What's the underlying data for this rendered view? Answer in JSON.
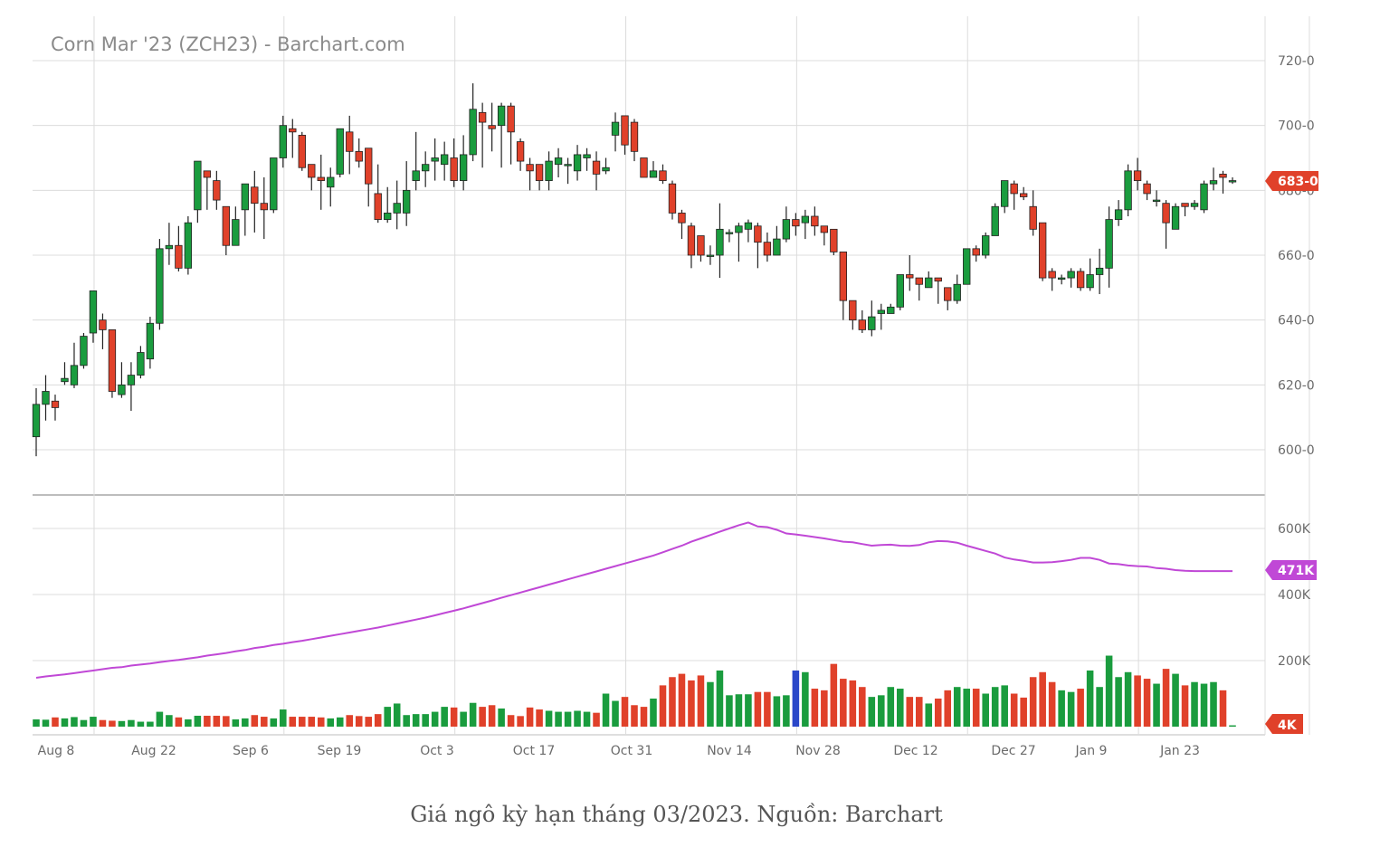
{
  "chart_data": {
    "type": "candlestick",
    "title": "Corn Mar '23 (ZCH23) - Barchart.com",
    "price_axis": {
      "ylim": [
        590,
        722
      ],
      "ticks": [
        "600-0",
        "620-0",
        "640-0",
        "660-0",
        "680-0",
        "700-0",
        "720-0"
      ],
      "values": [
        600,
        620,
        640,
        660,
        680,
        700,
        720
      ]
    },
    "volume_axis": {
      "ylim": [
        0,
        600000
      ],
      "ticks": [
        "200K",
        "400K",
        "600K"
      ],
      "values": [
        200000,
        400000,
        600000
      ]
    },
    "x_ticks": [
      "Aug 8",
      "Aug 22",
      "Sep 6",
      "Sep 19",
      "Oct 3",
      "Oct 17",
      "Oct 31",
      "Nov 14",
      "Nov 28",
      "Dec 12",
      "Dec 27",
      "Jan 9",
      "Jan 23"
    ],
    "last_price_label": "683-0",
    "last_open_interest_label": "471K",
    "last_volume_label": "4K",
    "colors": {
      "up": "#1a9c3e",
      "down": "#e0412a",
      "open_interest": "#c048d6",
      "highlight_volume": "#2a47c9",
      "grid": "#dcdcdc"
    },
    "candles": [
      [
        604,
        614,
        619,
        598
      ],
      [
        614,
        618,
        623,
        609
      ],
      [
        615,
        613,
        617,
        609
      ],
      [
        621,
        622,
        627,
        620
      ],
      [
        620,
        626,
        633,
        619
      ],
      [
        626,
        635,
        636,
        625
      ],
      [
        636,
        649,
        649,
        633
      ],
      [
        640,
        637,
        642,
        631
      ],
      [
        637,
        618,
        637,
        616
      ],
      [
        617,
        620,
        627,
        616
      ],
      [
        620,
        623,
        627,
        612
      ],
      [
        623,
        630,
        632,
        622
      ],
      [
        628,
        639,
        641,
        625
      ],
      [
        639,
        662,
        665,
        637
      ],
      [
        662,
        663,
        670,
        657
      ],
      [
        663,
        656,
        669,
        655
      ],
      [
        656,
        670,
        672,
        654
      ],
      [
        674,
        689,
        689,
        670
      ],
      [
        686,
        684,
        686,
        674
      ],
      [
        683,
        677,
        686,
        674
      ],
      [
        675,
        663,
        675,
        660
      ],
      [
        663,
        671,
        675,
        663
      ],
      [
        674,
        682,
        682,
        666
      ],
      [
        681,
        676,
        686,
        667
      ],
      [
        676,
        674,
        684,
        665
      ],
      [
        674,
        690,
        690,
        673
      ],
      [
        690,
        700,
        703,
        687
      ],
      [
        699,
        698,
        702,
        690
      ],
      [
        697,
        687,
        698,
        686
      ],
      [
        688,
        684,
        688,
        680
      ],
      [
        684,
        683,
        691,
        674
      ],
      [
        681,
        684,
        687,
        675
      ],
      [
        685,
        699,
        699,
        684
      ],
      [
        698,
        692,
        703,
        685
      ],
      [
        692,
        689,
        696,
        687
      ],
      [
        693,
        682,
        693,
        675
      ],
      [
        679,
        671,
        688,
        670
      ],
      [
        671,
        673,
        681,
        670
      ],
      [
        673,
        676,
        683,
        668
      ],
      [
        673,
        680,
        689,
        669
      ],
      [
        683,
        686,
        698,
        680
      ],
      [
        686,
        688,
        692,
        681
      ],
      [
        689,
        690,
        696,
        683
      ],
      [
        688,
        691,
        695,
        683
      ],
      [
        690,
        683,
        696,
        681
      ],
      [
        683,
        691,
        697,
        680
      ],
      [
        691,
        705,
        713,
        689
      ],
      [
        704,
        701,
        707,
        687
      ],
      [
        700,
        699,
        707,
        692
      ],
      [
        700,
        706,
        707,
        687
      ],
      [
        706,
        698,
        707,
        688
      ],
      [
        695,
        689,
        696,
        686
      ],
      [
        688,
        686,
        690,
        680
      ],
      [
        688,
        683,
        688,
        680
      ],
      [
        683,
        689,
        692,
        680
      ],
      [
        688,
        690,
        693,
        684
      ],
      [
        688,
        688,
        690,
        682
      ],
      [
        686,
        691,
        694,
        683
      ],
      [
        690,
        691,
        693,
        686
      ],
      [
        689,
        685,
        692,
        680
      ],
      [
        686,
        687,
        690,
        685
      ],
      [
        697,
        701,
        704,
        692
      ],
      [
        703,
        694,
        703,
        691
      ],
      [
        701,
        692,
        702,
        689
      ],
      [
        690,
        684,
        690,
        684
      ],
      [
        684,
        686,
        689,
        684
      ],
      [
        686,
        683,
        688,
        682
      ],
      [
        682,
        673,
        683,
        671
      ],
      [
        673,
        670,
        674,
        665
      ],
      [
        669,
        660,
        670,
        656
      ],
      [
        666,
        660,
        666,
        658
      ],
      [
        660,
        660,
        663,
        657
      ],
      [
        660,
        668,
        676,
        653
      ],
      [
        667,
        667,
        668,
        664
      ],
      [
        667,
        669,
        670,
        658
      ],
      [
        668,
        670,
        671,
        664
      ],
      [
        669,
        664,
        670,
        656
      ],
      [
        664,
        660,
        667,
        658
      ],
      [
        660,
        665,
        669,
        660
      ],
      [
        665,
        671,
        675,
        664
      ],
      [
        671,
        669,
        673,
        666
      ],
      [
        670,
        672,
        674,
        665
      ],
      [
        672,
        669,
        675,
        666
      ],
      [
        669,
        667,
        669,
        663
      ],
      [
        668,
        661,
        668,
        660
      ],
      [
        661,
        646,
        661,
        640
      ],
      [
        646,
        640,
        646,
        637
      ],
      [
        640,
        637,
        643,
        636
      ],
      [
        637,
        641,
        646,
        635
      ],
      [
        642,
        643,
        645,
        637
      ],
      [
        642,
        644,
        645,
        643
      ],
      [
        644,
        654,
        654,
        643
      ],
      [
        654,
        653,
        660,
        649
      ],
      [
        653,
        651,
        653,
        646
      ],
      [
        650,
        653,
        655,
        650
      ],
      [
        653,
        652,
        653,
        645
      ],
      [
        650,
        646,
        650,
        643
      ],
      [
        646,
        651,
        654,
        645
      ],
      [
        651,
        662,
        662,
        651
      ],
      [
        662,
        660,
        663,
        658
      ],
      [
        660,
        666,
        667,
        659
      ],
      [
        666,
        675,
        676,
        666
      ],
      [
        675,
        683,
        683,
        673
      ],
      [
        682,
        679,
        683,
        674
      ],
      [
        679,
        678,
        681,
        677
      ],
      [
        675,
        668,
        680,
        666
      ],
      [
        670,
        653,
        670,
        652
      ],
      [
        655,
        653,
        656,
        649
      ],
      [
        653,
        653,
        654,
        651
      ],
      [
        653,
        655,
        656,
        650
      ],
      [
        655,
        650,
        656,
        649
      ],
      [
        650,
        654,
        659,
        649
      ],
      [
        654,
        656,
        662,
        648
      ],
      [
        656,
        671,
        675,
        650
      ],
      [
        671,
        674,
        677,
        669
      ],
      [
        674,
        686,
        688,
        672
      ],
      [
        686,
        683,
        690,
        680
      ],
      [
        682,
        679,
        683,
        677
      ],
      [
        677,
        677,
        680,
        675
      ],
      [
        676,
        670,
        677,
        662
      ],
      [
        668,
        675,
        676,
        668
      ],
      [
        676,
        675,
        676,
        672
      ],
      [
        675,
        676,
        677,
        674
      ],
      [
        674,
        682,
        683,
        673
      ],
      [
        682,
        683,
        687,
        680
      ],
      [
        685,
        684,
        686,
        679
      ],
      [
        683,
        683,
        684,
        682
      ]
    ],
    "volume": [
      22,
      21,
      28,
      25,
      29,
      20,
      30,
      20,
      18,
      17,
      20,
      15,
      15,
      45,
      35,
      28,
      22,
      33,
      33,
      33,
      32,
      22,
      25,
      35,
      30,
      25,
      52,
      30,
      30,
      30,
      28,
      25,
      28,
      35,
      32,
      30,
      38,
      60,
      70,
      35,
      38,
      38,
      45,
      60,
      58,
      45,
      72,
      60,
      65,
      55,
      35,
      32,
      58,
      52,
      48,
      45,
      45,
      48,
      45,
      42,
      100,
      78,
      90,
      65,
      60,
      85,
      125,
      150,
      160,
      140,
      155,
      135,
      170,
      95,
      98,
      98,
      105,
      105,
      92,
      95,
      170,
      165,
      115,
      110,
      190,
      145,
      140,
      120,
      90,
      95,
      120,
      115,
      90,
      90,
      70,
      85,
      110,
      120,
      115,
      115,
      100,
      120,
      125,
      100,
      88,
      150,
      165,
      135,
      110,
      105,
      115,
      170,
      120,
      215,
      150,
      165,
      155,
      145,
      130,
      175,
      160,
      125,
      135,
      130,
      135,
      110,
      4
    ],
    "highlight_volume_index": 80,
    "open_interest": [
      148,
      152,
      155,
      158,
      162,
      166,
      170,
      174,
      178,
      180,
      185,
      188,
      191,
      195,
      199,
      202,
      206,
      210,
      215,
      219,
      223,
      228,
      232,
      238,
      242,
      247,
      251,
      256,
      260,
      265,
      270,
      275,
      280,
      285,
      290,
      295,
      300,
      306,
      312,
      318,
      324,
      330,
      337,
      344,
      351,
      358,
      366,
      374,
      382,
      390,
      398,
      406,
      414,
      422,
      430,
      438,
      446,
      454,
      462,
      470,
      478,
      486,
      494,
      502,
      510,
      518,
      528,
      538,
      548,
      560,
      570,
      580,
      590,
      600,
      610,
      618,
      606,
      604,
      596,
      585,
      582,
      578,
      574,
      570,
      565,
      560,
      558,
      553,
      548,
      550,
      551,
      548,
      547,
      550,
      558,
      562,
      561,
      557,
      548,
      540,
      532,
      524,
      512,
      506,
      502,
      497,
      497,
      498,
      501,
      505,
      511,
      511,
      505,
      494,
      492,
      488,
      486,
      485,
      480,
      478,
      474,
      472,
      471,
      471,
      471,
      471,
      471
    ]
  },
  "caption": "Giá ngô kỳ hạn tháng 03/2023. Nguồn: Barchart"
}
